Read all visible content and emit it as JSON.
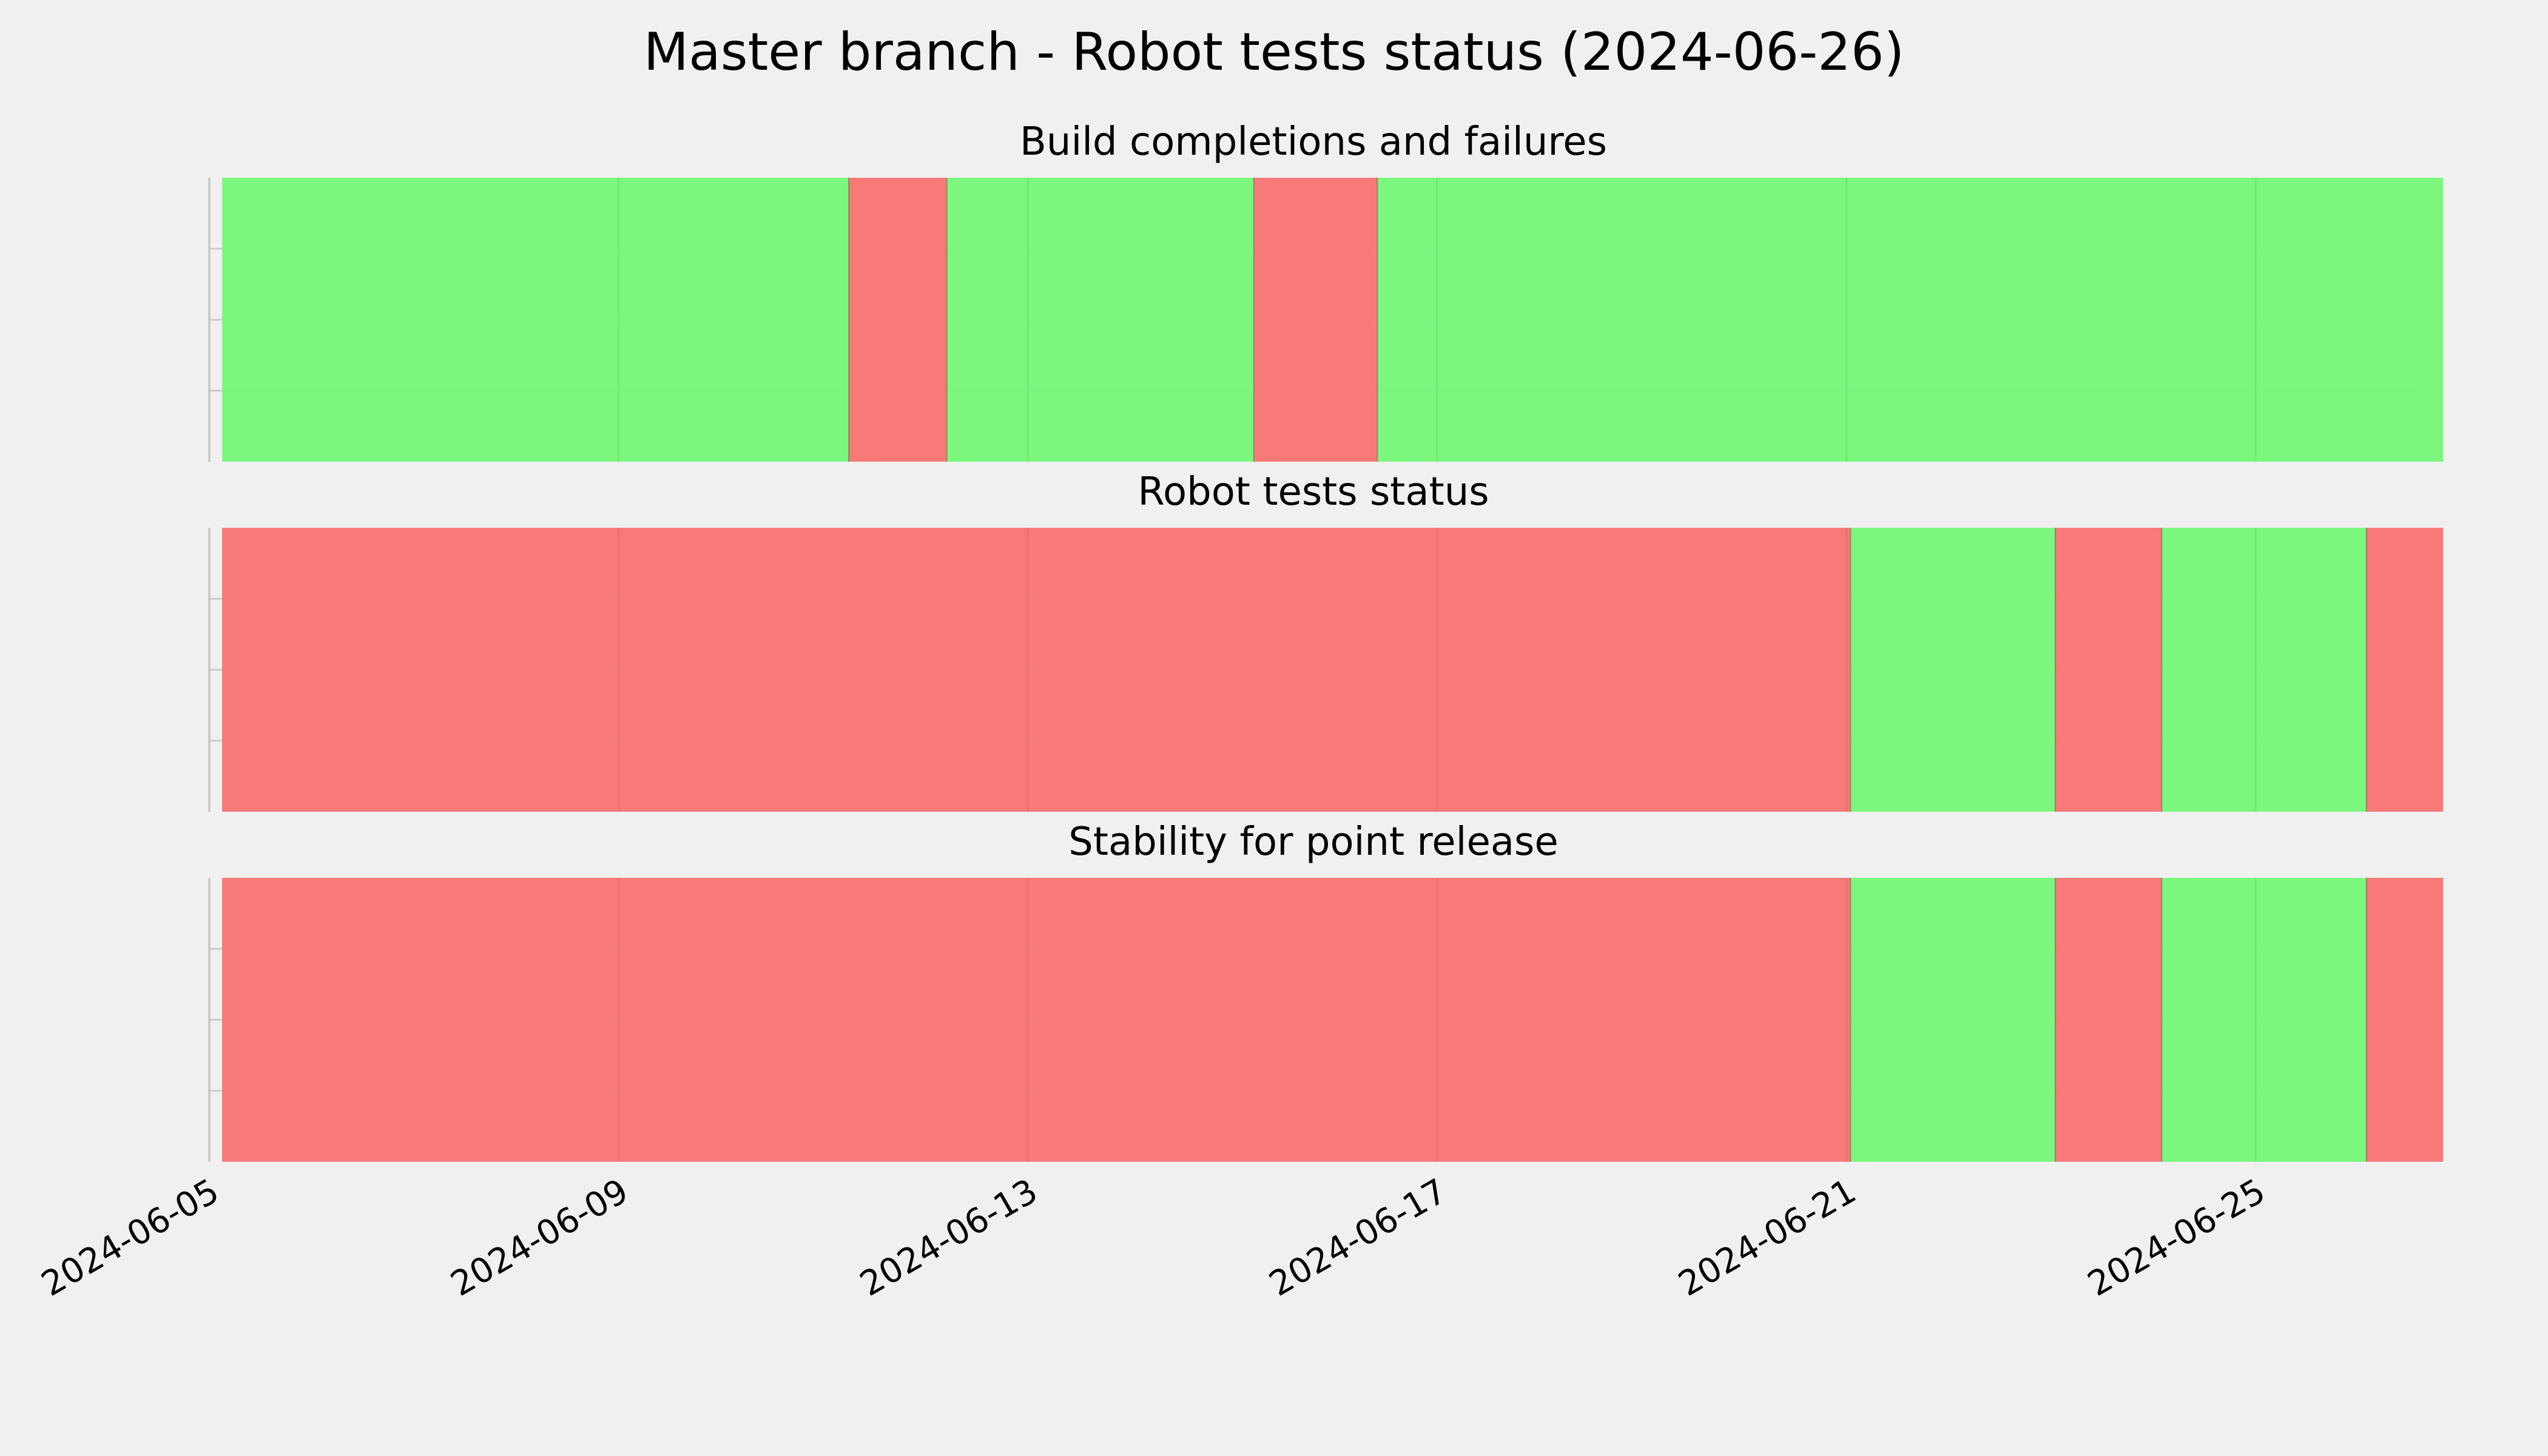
{
  "chart_data": {
    "type": "timeline",
    "title": "Master branch - Robot tests status (2024-06-26)",
    "x_type": "date",
    "x_range": [
      "2024-06-05",
      "2024-06-26 14:00"
    ],
    "x_ticks": [
      "2024-06-05",
      "2024-06-09",
      "2024-06-13",
      "2024-06-17",
      "2024-06-21",
      "2024-06-25"
    ],
    "grid": true,
    "status_colors": {
      "pass": "#77f77a",
      "fail": "#f77675"
    },
    "panels": [
      {
        "title": "Build completions and failures",
        "segments": [
          {
            "start": "2024-06-05 03:00",
            "end": "2024-06-11 06:00",
            "status": "pass"
          },
          {
            "start": "2024-06-11 06:00",
            "end": "2024-06-12 05:00",
            "status": "fail"
          },
          {
            "start": "2024-06-12 05:00",
            "end": "2024-06-15 05:00",
            "status": "pass"
          },
          {
            "start": "2024-06-15 05:00",
            "end": "2024-06-16 10:00",
            "status": "fail"
          },
          {
            "start": "2024-06-16 10:00",
            "end": "2024-06-26 20:00",
            "status": "pass"
          }
        ]
      },
      {
        "title": "Robot tests status",
        "segments": [
          {
            "start": "2024-06-05 03:00",
            "end": "2024-06-21 01:00",
            "status": "fail"
          },
          {
            "start": "2024-06-21 01:00",
            "end": "2024-06-23 01:00",
            "status": "pass"
          },
          {
            "start": "2024-06-23 01:00",
            "end": "2024-06-24 02:00",
            "status": "fail"
          },
          {
            "start": "2024-06-24 02:00",
            "end": "2024-06-26 02:00",
            "status": "pass"
          },
          {
            "start": "2024-06-26 02:00",
            "end": "2024-06-26 20:00",
            "status": "fail"
          }
        ]
      },
      {
        "title": "Stability for point release",
        "segments": [
          {
            "start": "2024-06-05 03:00",
            "end": "2024-06-21 01:00",
            "status": "fail"
          },
          {
            "start": "2024-06-21 01:00",
            "end": "2024-06-23 01:00",
            "status": "pass"
          },
          {
            "start": "2024-06-23 01:00",
            "end": "2024-06-24 02:00",
            "status": "fail"
          },
          {
            "start": "2024-06-24 02:00",
            "end": "2024-06-26 02:00",
            "status": "pass"
          },
          {
            "start": "2024-06-26 02:00",
            "end": "2024-06-26 20:00",
            "status": "fail"
          }
        ]
      }
    ]
  }
}
